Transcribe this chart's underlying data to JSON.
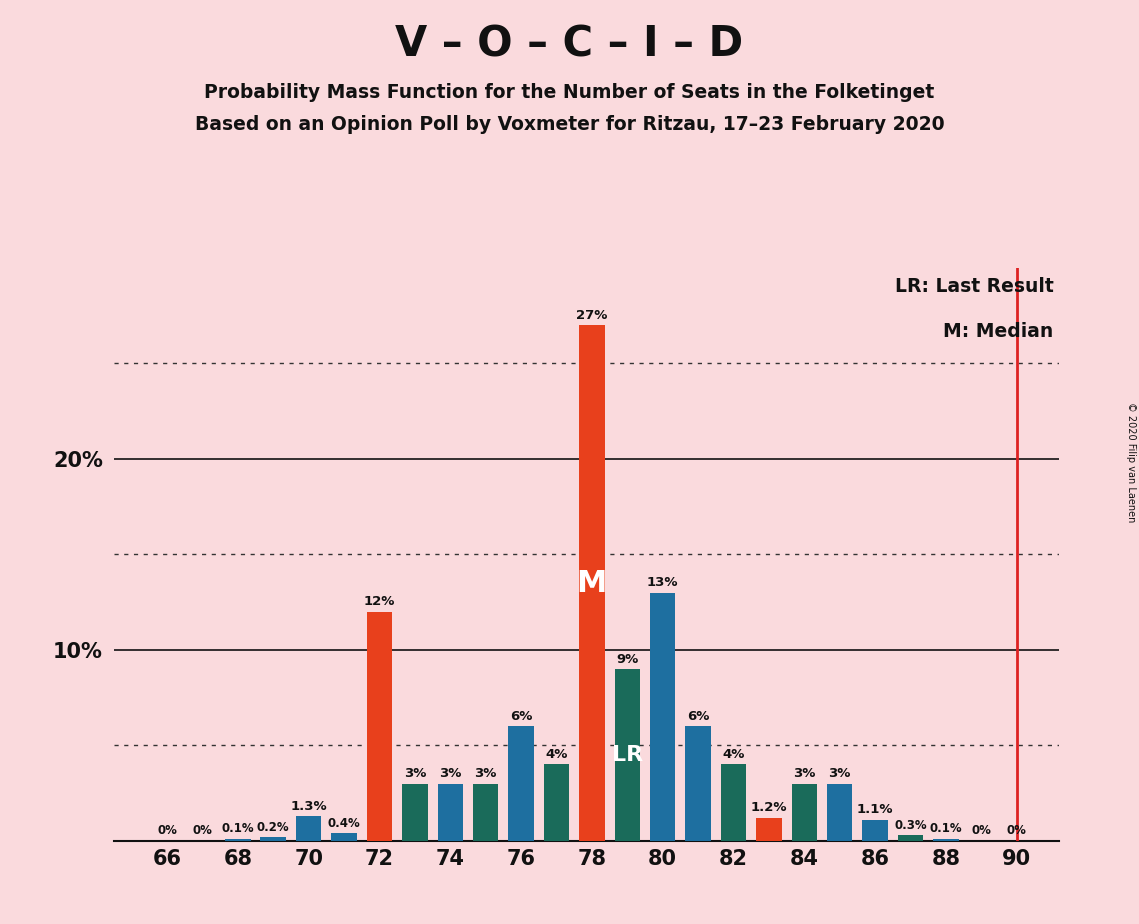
{
  "title": "V – O – C – I – D",
  "subtitle1": "Probability Mass Function for the Number of Seats in the Folketinget",
  "subtitle2": "Based on an Opinion Poll by Voxmeter for Ritzau, 17–23 February 2020",
  "copyright": "© 2020 Filip van Laenen",
  "background_color": "#fadadd",
  "legend_lr": "LR: Last Result",
  "legend_m": "M: Median",
  "median_seat": 78,
  "last_result_seat": 79,
  "vertical_line_seat": 90,
  "seats": [
    66,
    67,
    68,
    69,
    70,
    71,
    72,
    73,
    74,
    75,
    76,
    77,
    78,
    79,
    80,
    81,
    82,
    83,
    84,
    85,
    86,
    87,
    88,
    89,
    90
  ],
  "values": [
    0.0,
    0.0,
    0.1,
    0.2,
    1.3,
    0.4,
    12.0,
    3.0,
    3.0,
    3.0,
    6.0,
    4.0,
    27.0,
    9.0,
    13.0,
    6.0,
    4.0,
    1.2,
    3.0,
    3.0,
    1.1,
    0.3,
    0.1,
    0.0,
    0.0
  ],
  "bar_colors": [
    "#1e6fa0",
    "#1e6fa0",
    "#1e6fa0",
    "#1e6fa0",
    "#1e6fa0",
    "#1e6fa0",
    "#e8401c",
    "#1a6b5a",
    "#1e6fa0",
    "#1a6b5a",
    "#1e6fa0",
    "#1a6b5a",
    "#e8401c",
    "#1a6b5a",
    "#1e6fa0",
    "#1e6fa0",
    "#1a6b5a",
    "#e8401c",
    "#1a6b5a",
    "#1e6fa0",
    "#1e6fa0",
    "#1a6b5a",
    "#1e6fa0",
    "#1e6fa0",
    "#1a6b5a"
  ],
  "axis_color": "#111111",
  "vline_color": "#dd2222",
  "orange_color": "#e8401c",
  "blue_color": "#1e6fa0",
  "teal_color": "#1a6b5a",
  "ylim": [
    0,
    30
  ],
  "dotted_lines": [
    5,
    15,
    25
  ],
  "solid_lines": [
    10,
    20
  ],
  "bar_width": 0.72
}
